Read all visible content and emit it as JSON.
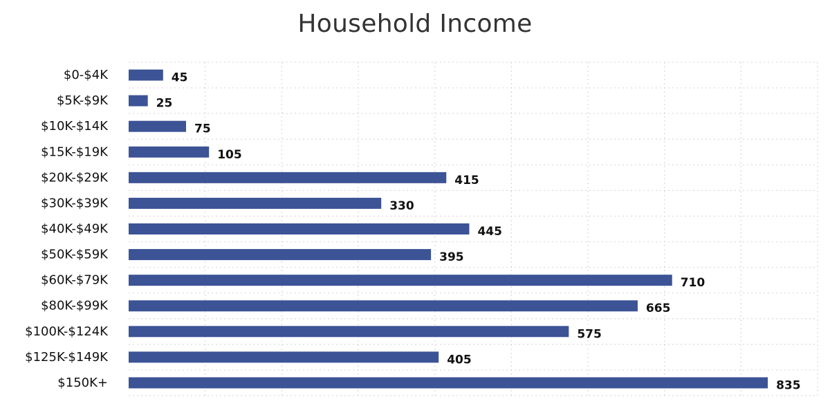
{
  "chart_data": {
    "type": "bar",
    "orientation": "horizontal",
    "title": "Household Income",
    "xlabel": "",
    "ylabel": "",
    "categories": [
      "$0-$4K",
      "$5K-$9K",
      "$10K-$14K",
      "$15K-$19K",
      "$20K-$29K",
      "$30K-$39K",
      "$40K-$49K",
      "$50K-$59K",
      "$60K-$79K",
      "$80K-$99K",
      "$100K-$124K",
      "$125K-$149K",
      "$150K+"
    ],
    "values": [
      45,
      25,
      75,
      105,
      415,
      330,
      445,
      395,
      710,
      665,
      575,
      405,
      835
    ],
    "xlim": [
      0,
      900
    ],
    "grid": true,
    "show_value_labels": true,
    "bar_color": "#3c5396",
    "grid_color": "#d9d9d9"
  }
}
